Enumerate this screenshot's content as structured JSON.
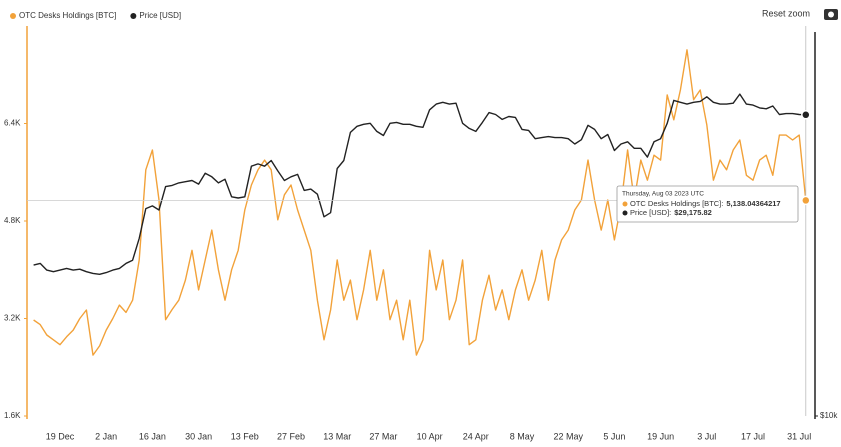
{
  "chart_data": {
    "type": "line",
    "series": [
      {
        "name": "OTC Desks Holdings [BTC]",
        "color": "#f2a23a",
        "axis": "y",
        "values": [
          3175,
          3100,
          2930,
          2850,
          2770,
          2900,
          3010,
          3200,
          3340,
          2600,
          2750,
          3010,
          3200,
          3420,
          3300,
          3500,
          4160,
          5640,
          5965,
          5145,
          3180,
          3350,
          3500,
          3830,
          4320,
          3670,
          4160,
          4650,
          4000,
          3500,
          4000,
          4320,
          4980,
          5390,
          5640,
          5800,
          5640,
          4820,
          5230,
          5390,
          4980,
          4650,
          4320,
          3500,
          2850,
          3340,
          4160,
          3500,
          3830,
          3180,
          3670,
          4320,
          3500,
          4000,
          3180,
          3500,
          2850,
          3500,
          2600,
          2850,
          4320,
          3670,
          4160,
          3180,
          3500,
          4160,
          2770,
          2850,
          3500,
          3910,
          3340,
          3670,
          3180,
          3670,
          4000,
          3500,
          3830,
          4320,
          3500,
          4160,
          4490,
          4650,
          4980,
          5145,
          5800,
          5145,
          4650,
          5145,
          4490,
          5060,
          5965,
          5145,
          5800,
          5470,
          5880,
          5800,
          6870,
          6460,
          6950,
          7610,
          6790,
          6950,
          6380,
          5470,
          5800,
          5640,
          5965,
          6130,
          5550,
          5470,
          5800,
          5880,
          5550,
          6210,
          6210,
          6130,
          6210,
          5138.04364217
        ]
      },
      {
        "name": "Price [USD]",
        "color": "#222222",
        "axis": "y2",
        "values": [
          17100,
          17200,
          16800,
          16700,
          16800,
          16900,
          16800,
          16850,
          16700,
          16600,
          16550,
          16650,
          16800,
          16900,
          17200,
          17400,
          18800,
          20900,
          21100,
          20800,
          22600,
          22700,
          22900,
          23000,
          23100,
          22800,
          23700,
          23400,
          22900,
          23200,
          21800,
          21700,
          21800,
          24300,
          24500,
          24300,
          24800,
          23900,
          23100,
          23400,
          23600,
          22300,
          22400,
          22000,
          20300,
          20600,
          24100,
          24800,
          27400,
          28000,
          28200,
          28300,
          27500,
          27100,
          28300,
          28400,
          28200,
          28200,
          28000,
          27900,
          29700,
          30300,
          30500,
          30300,
          30400,
          28300,
          27800,
          27500,
          28400,
          29400,
          29200,
          28700,
          29000,
          28900,
          27700,
          27600,
          26800,
          26900,
          27000,
          26900,
          26900,
          26800,
          26300,
          26700,
          28100,
          27700,
          26800,
          27200,
          25700,
          26300,
          26500,
          25900,
          25900,
          25100,
          26500,
          26800,
          28300,
          30700,
          30500,
          30300,
          30500,
          30600,
          31100,
          30500,
          30300,
          30300,
          30400,
          31400,
          30300,
          30200,
          29900,
          29800,
          30100,
          29200,
          29300,
          29300,
          29200,
          29175.82
        ]
      }
    ],
    "categories": [
      null,
      null,
      null,
      null,
      "19 Dec",
      null,
      null,
      null,
      null,
      null,
      null,
      "2 Jan",
      null,
      null,
      null,
      null,
      null,
      null,
      "16 Jan",
      null,
      null,
      null,
      null,
      null,
      null,
      "30 Jan",
      null,
      null,
      null,
      null,
      null,
      null,
      "13 Feb",
      null,
      null,
      null,
      null,
      null,
      null,
      "27 Feb",
      null,
      null,
      null,
      null,
      null,
      null,
      "13 Mar",
      null,
      null,
      null,
      null,
      null,
      null,
      "27 Mar",
      null,
      null,
      null,
      null,
      null,
      null,
      "10 Apr",
      null,
      null,
      null,
      null,
      null,
      null,
      "24 Apr",
      null,
      null,
      null,
      null,
      null,
      null,
      "8 May",
      null,
      null,
      null,
      null,
      null,
      null,
      "22 May",
      null,
      null,
      null,
      null,
      null,
      null,
      "5 Jun",
      null,
      null,
      null,
      null,
      null,
      null,
      "19 Jun",
      null,
      null,
      null,
      null,
      null,
      null,
      "3 Jul",
      null,
      null,
      null,
      null,
      null,
      null,
      "17 Jul",
      null,
      null,
      null,
      null,
      null,
      null,
      "31 Jul",
      null
    ],
    "ylim": [
      1600,
      8000
    ],
    "yticks": [
      {
        "value": 1600,
        "label": "1.6K"
      },
      {
        "value": 3200,
        "label": "3.2K"
      },
      {
        "value": 4800,
        "label": "4.8K"
      },
      {
        "value": 6400,
        "label": "6.4K"
      }
    ],
    "y2lim": [
      10000,
      40000
    ],
    "y2log": true,
    "y2ticks": [
      {
        "value": 10000,
        "label": "$10k"
      }
    ],
    "grid": false,
    "reset_zoom": "Reset zoom",
    "tooltip": {
      "title": "Thursday, Aug 03 2023 UTC",
      "rows": [
        {
          "label": "OTC Desks Holdings [BTC]:",
          "value": "5,138.04364217"
        },
        {
          "label": "Price [USD]:",
          "value": "$29,175.82"
        }
      ]
    }
  }
}
